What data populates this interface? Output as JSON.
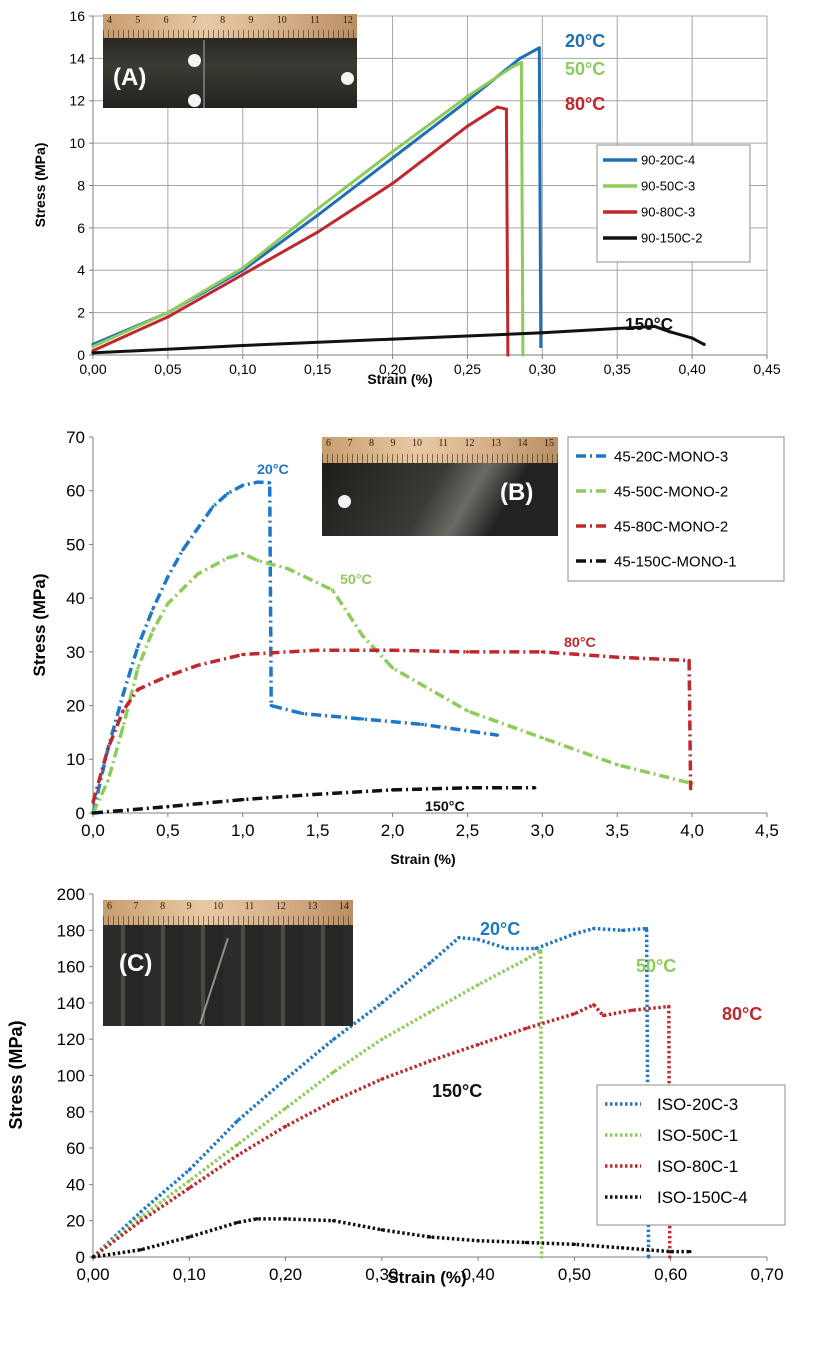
{
  "chart_data": [
    {
      "type": "line",
      "panel_label": "(A)",
      "xlabel": "Strain (%)",
      "ylabel": "Stress (MPa)",
      "xlim": [
        0,
        0.45
      ],
      "ylim": [
        0,
        16
      ],
      "x_ticks": [
        "0,00",
        "0,05",
        "0,10",
        "0,15",
        "0,20",
        "0,25",
        "0,30",
        "0,35",
        "0,40",
        "0,45"
      ],
      "y_ticks": [
        "0",
        "2",
        "4",
        "6",
        "8",
        "10",
        "12",
        "14",
        "16"
      ],
      "grid": true,
      "legend_position": "right",
      "series": [
        {
          "name": "90-20C-4",
          "color": "#1f6fb4",
          "style": "solid",
          "annotation": "20°C",
          "points": [
            [
              0,
              0.5
            ],
            [
              0.05,
              2.0
            ],
            [
              0.1,
              4.0
            ],
            [
              0.15,
              6.6
            ],
            [
              0.2,
              9.3
            ],
            [
              0.25,
              12.0
            ],
            [
              0.285,
              14.0
            ],
            [
              0.298,
              14.5
            ],
            [
              0.299,
              0.4
            ]
          ]
        },
        {
          "name": "90-50C-3",
          "color": "#8dcc5a",
          "style": "solid",
          "annotation": "50°C",
          "points": [
            [
              0,
              0.4
            ],
            [
              0.05,
              2.0
            ],
            [
              0.1,
              4.1
            ],
            [
              0.15,
              6.9
            ],
            [
              0.2,
              9.6
            ],
            [
              0.25,
              12.2
            ],
            [
              0.28,
              13.6
            ],
            [
              0.286,
              13.8
            ],
            [
              0.287,
              0
            ]
          ]
        },
        {
          "name": "90-80C-3",
          "color": "#c0282e",
          "style": "solid",
          "annotation": "80°C",
          "points": [
            [
              0,
              0.2
            ],
            [
              0.05,
              1.8
            ],
            [
              0.1,
              3.8
            ],
            [
              0.15,
              5.8
            ],
            [
              0.2,
              8.1
            ],
            [
              0.25,
              10.8
            ],
            [
              0.27,
              11.7
            ],
            [
              0.276,
              11.6
            ],
            [
              0.277,
              0
            ]
          ]
        },
        {
          "name": "90-150C-2",
          "color": "#111111",
          "style": "solid",
          "annotation": "150°C",
          "points": [
            [
              0,
              0.1
            ],
            [
              0.1,
              0.45
            ],
            [
              0.2,
              0.75
            ],
            [
              0.3,
              1.05
            ],
            [
              0.35,
              1.25
            ],
            [
              0.375,
              1.35
            ],
            [
              0.385,
              1.1
            ],
            [
              0.4,
              0.8
            ],
            [
              0.408,
              0.5
            ]
          ]
        }
      ]
    },
    {
      "type": "line",
      "panel_label": "(B)",
      "xlabel": "Strain (%)",
      "ylabel": "Stress (MPa)",
      "xlim": [
        0,
        4.5
      ],
      "ylim": [
        0,
        70
      ],
      "x_ticks": [
        "0,0",
        "0,5",
        "1,0",
        "1,5",
        "2,0",
        "2,5",
        "3,0",
        "3,5",
        "4,0",
        "4,5"
      ],
      "y_ticks": [
        "0",
        "10",
        "20",
        "30",
        "40",
        "50",
        "60",
        "70"
      ],
      "grid": false,
      "legend_position": "top-right",
      "series": [
        {
          "name": "45-20C-MONO-3",
          "color": "#1f77c8",
          "style": "dashdot",
          "annotation": "20°C",
          "points": [
            [
              0,
              0
            ],
            [
              0.1,
              12
            ],
            [
              0.2,
              22
            ],
            [
              0.3,
              31
            ],
            [
              0.4,
              38
            ],
            [
              0.5,
              44
            ],
            [
              0.6,
              49
            ],
            [
              0.7,
              53
            ],
            [
              0.8,
              57
            ],
            [
              0.9,
              59.5
            ],
            [
              1.0,
              61
            ],
            [
              1.1,
              61.6
            ],
            [
              1.18,
              61.5
            ],
            [
              1.19,
              20
            ],
            [
              1.4,
              18.5
            ],
            [
              1.8,
              17.5
            ],
            [
              2.2,
              16.5
            ],
            [
              2.7,
              14.5
            ]
          ]
        },
        {
          "name": "45-50C-MONO-2",
          "color": "#8dcc5a",
          "style": "dashdot",
          "annotation": "50°C",
          "points": [
            [
              0,
              0
            ],
            [
              0.1,
              6
            ],
            [
              0.2,
              16
            ],
            [
              0.3,
              27
            ],
            [
              0.4,
              34
            ],
            [
              0.5,
              39
            ],
            [
              0.7,
              44.5
            ],
            [
              0.9,
              47.5
            ],
            [
              1.0,
              48.3
            ],
            [
              1.1,
              47
            ],
            [
              1.3,
              45.5
            ],
            [
              1.6,
              41.5
            ],
            [
              1.8,
              33
            ],
            [
              2.0,
              27
            ],
            [
              2.5,
              19
            ],
            [
              3.0,
              14
            ],
            [
              3.5,
              9
            ],
            [
              4.0,
              5.5
            ]
          ]
        },
        {
          "name": "45-80C-MONO-2",
          "color": "#c0282e",
          "style": "dashdot",
          "annotation": "80°C",
          "points": [
            [
              0,
              2
            ],
            [
              0.1,
              12
            ],
            [
              0.2,
              19
            ],
            [
              0.3,
              23
            ],
            [
              0.5,
              25.5
            ],
            [
              0.7,
              27.5
            ],
            [
              1.0,
              29.5
            ],
            [
              1.5,
              30.3
            ],
            [
              2.0,
              30.3
            ],
            [
              2.5,
              30
            ],
            [
              3.0,
              30
            ],
            [
              3.5,
              29
            ],
            [
              3.98,
              28.4
            ],
            [
              3.99,
              4.5
            ]
          ]
        },
        {
          "name": "45-150C-MONO-1",
          "color": "#111111",
          "style": "dashdot",
          "annotation": "150°C",
          "points": [
            [
              0,
              0
            ],
            [
              0.5,
              1.2
            ],
            [
              1.0,
              2.5
            ],
            [
              1.5,
              3.5
            ],
            [
              2.0,
              4.3
            ],
            [
              2.5,
              4.7
            ],
            [
              2.95,
              4.7
            ]
          ]
        }
      ]
    },
    {
      "type": "line",
      "panel_label": "(C)",
      "xlabel": "Strain (%)",
      "ylabel": "Stress (MPa)",
      "xlim": [
        0,
        0.7
      ],
      "ylim": [
        0,
        200
      ],
      "x_ticks": [
        "0,00",
        "0,10",
        "0,20",
        "0,30",
        "0,40",
        "0,50",
        "0,60",
        "0,70"
      ],
      "y_ticks": [
        "0",
        "20",
        "40",
        "60",
        "80",
        "100",
        "120",
        "140",
        "160",
        "180",
        "200"
      ],
      "grid": false,
      "legend_position": "right",
      "series": [
        {
          "name": "ISO-20C-3",
          "color": "#1f77c8",
          "style": "dotted",
          "annotation": "20°C",
          "points": [
            [
              0,
              0
            ],
            [
              0.05,
              25
            ],
            [
              0.1,
              48
            ],
            [
              0.15,
              75
            ],
            [
              0.2,
              98
            ],
            [
              0.25,
              120
            ],
            [
              0.3,
              140
            ],
            [
              0.35,
              162
            ],
            [
              0.38,
              176
            ],
            [
              0.4,
              175
            ],
            [
              0.43,
              170
            ],
            [
              0.46,
              170
            ],
            [
              0.5,
              178
            ],
            [
              0.52,
              181
            ],
            [
              0.55,
              180
            ],
            [
              0.575,
              181
            ],
            [
              0.577,
              0
            ]
          ]
        },
        {
          "name": "ISO-50C-1",
          "color": "#8dcc5a",
          "style": "dotted",
          "annotation": "50°C",
          "points": [
            [
              0,
              0
            ],
            [
              0.05,
              22
            ],
            [
              0.1,
              42
            ],
            [
              0.15,
              62
            ],
            [
              0.2,
              82
            ],
            [
              0.25,
              102
            ],
            [
              0.3,
              120
            ],
            [
              0.35,
              135
            ],
            [
              0.4,
              150
            ],
            [
              0.45,
              164
            ],
            [
              0.465,
              169
            ],
            [
              0.466,
              0
            ]
          ]
        },
        {
          "name": "ISO-80C-1",
          "color": "#c0282e",
          "style": "dotted",
          "annotation": "80°C",
          "points": [
            [
              0,
              0
            ],
            [
              0.05,
              20
            ],
            [
              0.1,
              38
            ],
            [
              0.15,
              56
            ],
            [
              0.2,
              72
            ],
            [
              0.25,
              86
            ],
            [
              0.3,
              98
            ],
            [
              0.35,
              108
            ],
            [
              0.4,
              117
            ],
            [
              0.45,
              126
            ],
            [
              0.5,
              134
            ],
            [
              0.52,
              139
            ],
            [
              0.53,
              133
            ],
            [
              0.56,
              136
            ],
            [
              0.598,
              138
            ],
            [
              0.599,
              0
            ]
          ]
        },
        {
          "name": "ISO-150C-4",
          "color": "#111111",
          "style": "dotted",
          "annotation": "150°C",
          "points": [
            [
              0,
              0
            ],
            [
              0.05,
              4
            ],
            [
              0.1,
              11
            ],
            [
              0.15,
              19
            ],
            [
              0.17,
              21
            ],
            [
              0.2,
              21
            ],
            [
              0.25,
              20
            ],
            [
              0.3,
              15
            ],
            [
              0.35,
              11
            ],
            [
              0.4,
              9
            ],
            [
              0.45,
              8
            ],
            [
              0.5,
              7
            ],
            [
              0.55,
              5
            ],
            [
              0.6,
              3
            ],
            [
              0.62,
              3
            ]
          ]
        }
      ]
    }
  ],
  "photos": {
    "A": {
      "label": "(A)",
      "ruler_numbers": [
        "4",
        "5",
        "6",
        "7",
        "8",
        "9",
        "10",
        "11",
        "12"
      ]
    },
    "B": {
      "label": "(B)",
      "ruler_numbers": [
        "6",
        "7",
        "8",
        "9",
        "10",
        "11",
        "12",
        "13",
        "14",
        "15"
      ]
    },
    "C": {
      "label": "(C)",
      "ruler_numbers": [
        "6",
        "7",
        "8",
        "9",
        "10",
        "11",
        "12",
        "13",
        "14"
      ]
    }
  }
}
